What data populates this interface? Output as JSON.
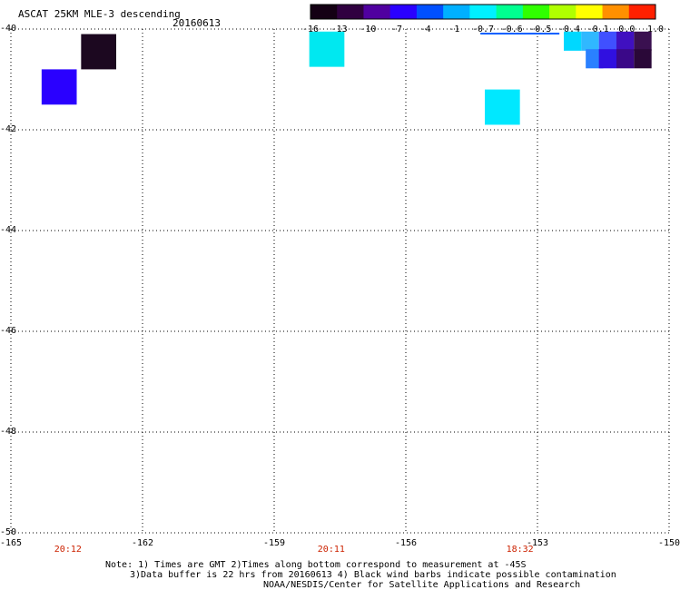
{
  "header": {
    "title": "ASCAT 25KM MLE-3 descending",
    "date": "20160613"
  },
  "colorbar": {
    "labels": [
      "-16",
      "-13",
      "-10",
      "-7",
      "-4",
      "-1",
      "-0.7",
      "-0.6",
      "-0.5",
      "-0.4",
      "-0.1",
      "0.0",
      "1.0"
    ],
    "colors": [
      "#140014",
      "#300040",
      "#5000a0",
      "#2a00ff",
      "#0050ff",
      "#00b0ff",
      "#00f0ff",
      "#00ff90",
      "#30ff00",
      "#b0ff00",
      "#ffff00",
      "#ff9000",
      "#ff2000"
    ]
  },
  "map": {
    "lon_range": [
      -165,
      -150
    ],
    "lat_range": [
      -50,
      -40
    ],
    "lon_ticks": [
      "-165",
      "-162",
      "-159",
      "-156",
      "-153",
      "-150"
    ],
    "lat_ticks": [
      "-40",
      "-42",
      "-44",
      "-46",
      "-48",
      "-50"
    ],
    "times": [
      {
        "label": "20:12",
        "lon": -163.7
      },
      {
        "label": "20:11",
        "lon": -157.7
      },
      {
        "label": "18:32",
        "lon": -153.4
      }
    ],
    "cells": [
      {
        "lon": -163.4,
        "lat": -40.1,
        "color": "#1c0820"
      },
      {
        "lon": -164.3,
        "lat": -40.8,
        "color": "#2a00ff"
      },
      {
        "lon": -158.2,
        "lat": -40.05,
        "color": "#00e8f0"
      },
      {
        "lon": -154.2,
        "lat": -41.2,
        "color": "#00e8ff"
      },
      {
        "lon": -152.4,
        "lat": -40.05,
        "color": "#00d8ff",
        "small": true
      },
      {
        "lon": -152.0,
        "lat": -40.05,
        "color": "#30b8ff",
        "small": true
      },
      {
        "lon": -151.9,
        "lat": -40.4,
        "color": "#2a80ff",
        "small": true
      },
      {
        "lon": -151.6,
        "lat": -40.05,
        "color": "#4050ff",
        "small": true
      },
      {
        "lon": -151.6,
        "lat": -40.4,
        "color": "#3010e0",
        "small": true
      },
      {
        "lon": -151.2,
        "lat": -40.05,
        "color": "#4010c0",
        "small": true
      },
      {
        "lon": -151.2,
        "lat": -40.4,
        "color": "#3a0888",
        "small": true
      },
      {
        "lon": -150.8,
        "lat": -40.05,
        "color": "#3a1050",
        "small": true
      },
      {
        "lon": -150.8,
        "lat": -40.4,
        "color": "#2a0838",
        "small": true
      }
    ]
  },
  "notes": {
    "line1": "Note: 1) Times are GMT 2)Times along bottom correspond to measurement at -45S",
    "line2": "3)Data buffer is 22 hrs from 20160613 4) Black wind barbs indicate possible contamination",
    "line3": "NOAA/NESDIS/Center for Satellite Applications and Research"
  }
}
